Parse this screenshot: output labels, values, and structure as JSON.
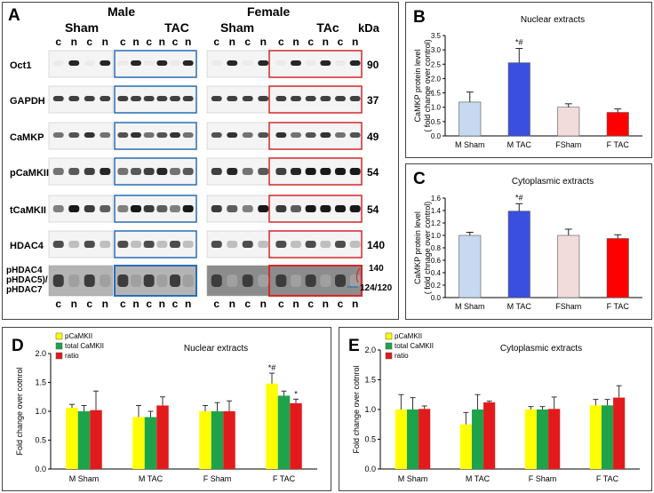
{
  "panel_a": {
    "label": "A",
    "sex_headers": [
      "Male",
      "Female"
    ],
    "group_headers": [
      "Sham",
      "TAC",
      "Sham",
      "TAc"
    ],
    "kda_header": "kDa",
    "lane_letters": [
      "c",
      "n",
      "c",
      "n"
    ],
    "bands": [
      {
        "name": "Oct1",
        "kda": "90"
      },
      {
        "name": "GAPDH",
        "kda": "37"
      },
      {
        "name": "CaMKP",
        "kda": "49"
      },
      {
        "name": "pCaMKII",
        "kda": "54"
      },
      {
        "name": "tCaMKII",
        "kda": "54"
      },
      {
        "name": "HDAC4",
        "kda": "140"
      }
    ],
    "hdac_label_lines": [
      "pHDAC4",
      "pHDAC5)/",
      "pHDAC7"
    ],
    "hdac_kda_top": "140",
    "hdac_kda_bottom": "124/120",
    "colors": {
      "blue_box": "#2a6db5",
      "red_box": "#d62828"
    }
  },
  "chart_data": [
    {
      "panel": "B",
      "type": "bar",
      "title": "Nuclear extracts",
      "ylabel_lines": [
        "CaMKP  protein level",
        "( fold change over control)"
      ],
      "categories": [
        "M Sham",
        "M TAC",
        "FSham",
        "F TAC"
      ],
      "values": [
        1.18,
        2.55,
        1.0,
        0.82
      ],
      "errors": [
        0.35,
        0.5,
        0.12,
        0.12
      ],
      "colors": [
        "#c6d9f1",
        "#3a4fe0",
        "#f2dcdb",
        "#ff0000"
      ],
      "annotations": [
        "",
        "*#",
        "",
        ""
      ],
      "ylim": [
        0,
        3.5
      ],
      "yticks": [
        "0.0",
        "0.5",
        "1.0",
        "1.5",
        "2.0",
        "2.5",
        "3.0",
        "3.5"
      ]
    },
    {
      "panel": "C",
      "type": "bar",
      "title": "Cytoplasmic extracts",
      "ylabel_lines": [
        "CaMKP  protein level",
        "( fold chnage over control)"
      ],
      "categories": [
        "M Sham",
        "M TAC",
        "FSham",
        "F TAC"
      ],
      "values": [
        1.0,
        1.39,
        1.0,
        0.95
      ],
      "errors": [
        0.05,
        0.12,
        0.1,
        0.06
      ],
      "colors": [
        "#c6d9f1",
        "#3a4fe0",
        "#f2dcdb",
        "#ff0000"
      ],
      "annotations": [
        "",
        "*#",
        "",
        ""
      ],
      "ylim": [
        0,
        1.6
      ],
      "yticks": [
        "0.0",
        "0.2",
        "0.4",
        "0.6",
        "0.8",
        "1.0",
        "1.2",
        "1.4",
        "1.6"
      ]
    },
    {
      "panel": "D",
      "type": "bar",
      "title": "Nuclear extracts",
      "ylabel": "Fold change over cotnrol",
      "categories": [
        "M Sham",
        "M TAC",
        "F Sham",
        "F TAC"
      ],
      "series": [
        {
          "name": "pCaMKII",
          "color": "#ffff00",
          "values": [
            1.06,
            0.9,
            1.0,
            1.48
          ],
          "errors": [
            0.06,
            0.2,
            0.1,
            0.18
          ]
        },
        {
          "name": "total CaMKII",
          "color": "#1fa34a",
          "values": [
            1.0,
            0.9,
            1.0,
            1.27
          ],
          "errors": [
            0.1,
            0.1,
            0.15,
            0.08
          ]
        },
        {
          "name": "ratio",
          "color": "#e31a1c",
          "values": [
            1.02,
            1.1,
            1.0,
            1.14
          ],
          "errors": [
            0.33,
            0.15,
            0.18,
            0.07
          ]
        }
      ],
      "annotations": [
        [
          "",
          "",
          ""
        ],
        [
          "",
          "",
          ""
        ],
        [
          "",
          "",
          ""
        ],
        [
          "*#",
          "",
          "*"
        ]
      ],
      "ylim": [
        0,
        2.0
      ],
      "yticks": [
        "0.0",
        "0.5",
        "1.0",
        "1.5",
        "2.0"
      ]
    },
    {
      "panel": "E",
      "type": "bar",
      "title": "Cytoplasmic extracts",
      "ylabel": "Fold change over cotnrol",
      "categories": [
        "M Sham",
        "M TAC",
        "F Sham",
        "F TAC"
      ],
      "series": [
        {
          "name": "pCaMKII",
          "color": "#ffff00",
          "values": [
            1.0,
            0.75,
            1.0,
            1.07
          ],
          "errors": [
            0.25,
            0.2,
            0.05,
            0.1
          ]
        },
        {
          "name": "total CaMKII",
          "color": "#1fa34a",
          "values": [
            1.0,
            1.0,
            1.0,
            1.07
          ],
          "errors": [
            0.2,
            0.25,
            0.05,
            0.1
          ]
        },
        {
          "name": "ratio",
          "color": "#e31a1c",
          "values": [
            1.01,
            1.12,
            1.01,
            1.2
          ],
          "errors": [
            0.05,
            0.02,
            0.2,
            0.2
          ]
        }
      ],
      "annotations": [
        [
          "",
          "",
          ""
        ],
        [
          "",
          "",
          ""
        ],
        [
          "",
          "",
          ""
        ],
        [
          "",
          "",
          ""
        ]
      ],
      "ylim": [
        0,
        2.0
      ],
      "yticks": [
        "0.0",
        "0.5",
        "1.0",
        "1.5",
        "2.0"
      ]
    }
  ]
}
